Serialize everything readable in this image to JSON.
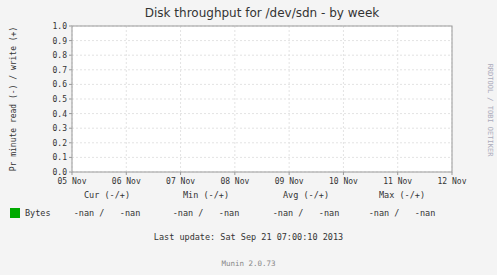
{
  "chart_data": {
    "type": "line",
    "title": "Disk throughput for /dev/sdn - by week",
    "y_label": "Pr minute read (-) / write (+)",
    "categories": [
      "05 Nov",
      "06 Nov",
      "07 Nov",
      "08 Nov",
      "09 Nov",
      "10 Nov",
      "11 Nov",
      "12 Nov"
    ],
    "series": [
      {
        "name": "Bytes",
        "color": "#00aa00",
        "values": [
          null,
          null,
          null,
          null,
          null,
          null,
          null,
          null
        ]
      }
    ],
    "ylim": [
      0.0,
      1.0
    ],
    "yticks": [
      {
        "value": 0.0,
        "label": "0.0"
      },
      0.1,
      0.2,
      0.3,
      0.4,
      0.5,
      0.6,
      0.7,
      0.8,
      0.9,
      {
        "value": 1.0,
        "label": "1.0"
      }
    ],
    "grid": true,
    "legend": "bottom left",
    "annotations": [
      "Cur (-/+)",
      "Min (-/+)",
      "Avg (-/+)",
      "Max (-/+)",
      "-nan /   -nan",
      "-nan /   -nan",
      "-nan /   -nan",
      "-nan /   -nan",
      "Last update: Sat Sep 21 07:00:10 2013",
      "Munin 2.0.73",
      "RRDTOOL / TOBI OETIKER"
    ]
  }
}
